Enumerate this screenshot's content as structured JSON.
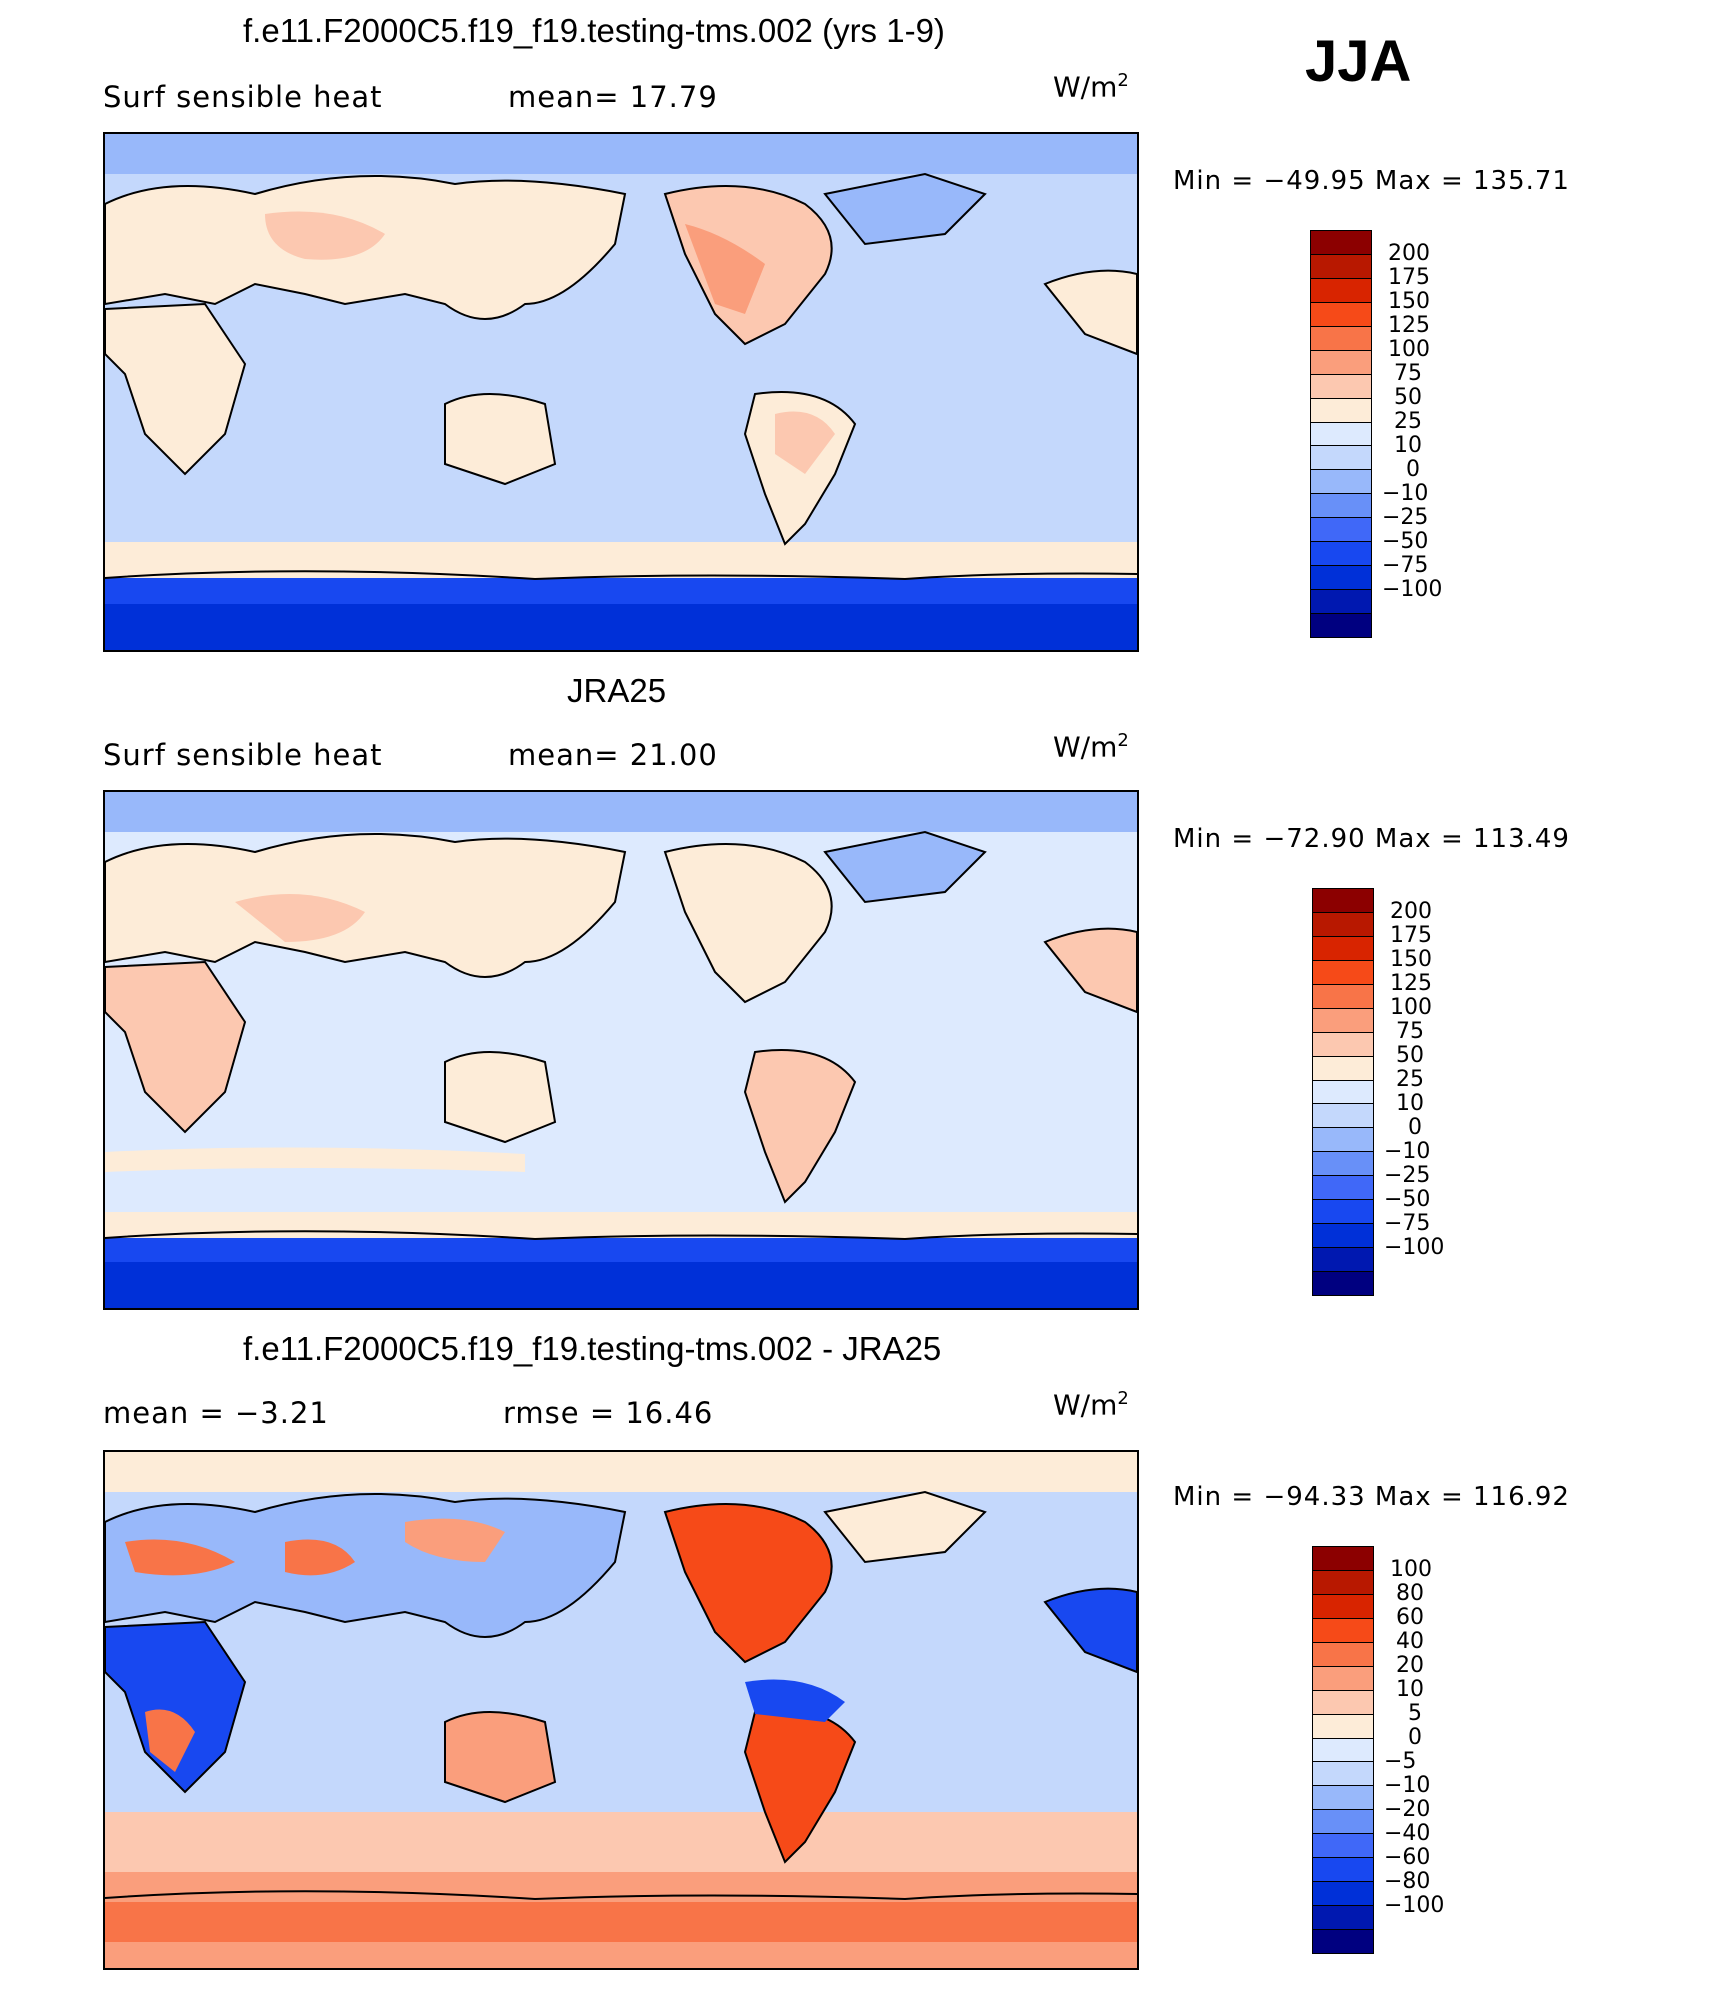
{
  "season": "JJA",
  "colors": {
    "abs": [
      "#000080",
      "#0018b0",
      "#0030d8",
      "#1848f0",
      "#4068f8",
      "#6890f8",
      "#98b8fa",
      "#c4d8fc",
      "#ddeafe",
      "#fdecd8",
      "#fcc8b0",
      "#fa9e7c",
      "#f87448",
      "#f64a18",
      "#d82400",
      "#b81800",
      "#8c0000"
    ],
    "diff": [
      "#000080",
      "#0018b0",
      "#0030d8",
      "#1848f0",
      "#4068f8",
      "#6890f8",
      "#98b8fa",
      "#c4d8fc",
      "#ddeafe",
      "#fdecd8",
      "#fcc8b0",
      "#fa9e7c",
      "#f87448",
      "#f64a18",
      "#d82400",
      "#b81800",
      "#8c0000"
    ]
  },
  "panels": [
    {
      "id": "model",
      "title": "f.e11.F2000C5.f19_f19.testing-tms.002 (yrs 1-9)",
      "left_label": "Surf  sensible  heat",
      "mid_label": "mean=   17.79",
      "units": "W/m",
      "units_sup": "2",
      "minmax": "Min  =  −49.95  Max  =  135.71",
      "colorbar_ticks": [
        "200",
        "175",
        "150",
        "125",
        "100",
        "75",
        "50",
        "25",
        "10",
        "0",
        "−10",
        "−25",
        "−50",
        "−75",
        "−100"
      ],
      "map_type": "abs"
    },
    {
      "id": "obs",
      "title": "JRA25",
      "left_label": "Surf  sensible  heat",
      "mid_label": "mean=   21.00",
      "units": "W/m",
      "units_sup": "2",
      "minmax": "Min  =  −72.90  Max  =  113.49",
      "colorbar_ticks": [
        "200",
        "175",
        "150",
        "125",
        "100",
        "75",
        "50",
        "25",
        "10",
        "0",
        "−10",
        "−25",
        "−50",
        "−75",
        "−100"
      ],
      "map_type": "abs"
    },
    {
      "id": "diff",
      "title": "f.e11.F2000C5.f19_f19.testing-tms.002 - JRA25",
      "left_label": "mean  =    −3.21",
      "mid_label": "rmse  =    16.46",
      "units": "W/m",
      "units_sup": "2",
      "minmax": "Min  =  −94.33  Max  =  116.92",
      "colorbar_ticks": [
        "100",
        "80",
        "60",
        "40",
        "20",
        "10",
        "5",
        "0",
        "−5",
        "−10",
        "−20",
        "−40",
        "−60",
        "−80",
        "−100"
      ],
      "map_type": "diff"
    }
  ]
}
